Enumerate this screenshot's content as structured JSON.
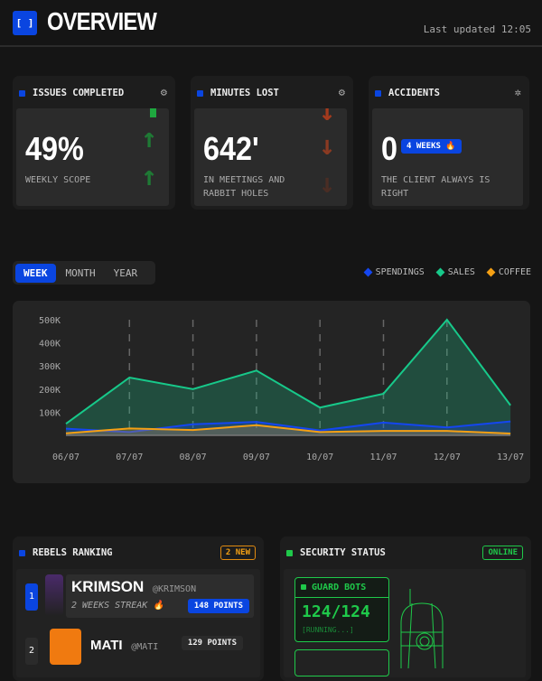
{
  "header": {
    "logo": "[ ]",
    "title": "OVERVIEW",
    "last_updated": "Last updated 12:05"
  },
  "cards": [
    {
      "title": "ISSUES COMPLETED",
      "icon": "settings-icon",
      "value": "49%",
      "caption": "WEEKLY SCOPE",
      "trend": "up",
      "trend_color": "#1f8a3a"
    },
    {
      "title": "MINUTES LOST",
      "icon": "settings-icon",
      "value": "642'",
      "caption": "IN MEETINGS AND RABBIT HOLES",
      "trend": "down",
      "trend_color": "#b03a1c"
    },
    {
      "title": "ACCIDENTS",
      "icon": "bug-icon",
      "value": "0",
      "badge": "4 WEEKS 🔥",
      "caption": "THE CLIENT ALWAYS IS RIGHT"
    }
  ],
  "range_tabs": {
    "items": [
      "WEEK",
      "MONTH",
      "YEAR"
    ],
    "selected": "WEEK"
  },
  "chart_data": {
    "type": "area",
    "x": [
      "06/07",
      "07/07",
      "08/07",
      "09/07",
      "10/07",
      "11/07",
      "12/07",
      "13/07"
    ],
    "yticks": [
      "100K",
      "200K",
      "300K",
      "400K",
      "500K"
    ],
    "ylim": [
      0,
      500000
    ],
    "grid": "vertical dashed",
    "legend_position": "top-right",
    "series": [
      {
        "name": "SPENDINGS",
        "color": "#1446f0",
        "values": [
          29000,
          14000,
          48000,
          58000,
          21000,
          55000,
          34000,
          60000
        ]
      },
      {
        "name": "SALES",
        "color": "#17c98a",
        "values": [
          50000,
          250000,
          200000,
          280000,
          120000,
          180000,
          500000,
          130000
        ]
      },
      {
        "name": "COFFEE",
        "color": "#f5a014",
        "values": [
          9000,
          30000,
          23000,
          44000,
          14000,
          19000,
          19000,
          8000
        ]
      }
    ]
  },
  "ranking": {
    "title": "REBELS RANKING",
    "badge": "2 NEW",
    "items": [
      {
        "rank": "1",
        "name": "KRIMSON",
        "handle": "@KRIMSON",
        "streak": "2 WEEKS STREAK 🔥",
        "points": "148 POINTS"
      },
      {
        "rank": "2",
        "name": "MATI",
        "handle": "@MATI",
        "points": "129 POINTS"
      }
    ]
  },
  "security": {
    "title": "SECURITY STATUS",
    "status": "ONLINE",
    "guard_bots": {
      "label": "GUARD BOTS",
      "value": "124/124",
      "state": "[RUNNING...]"
    }
  }
}
